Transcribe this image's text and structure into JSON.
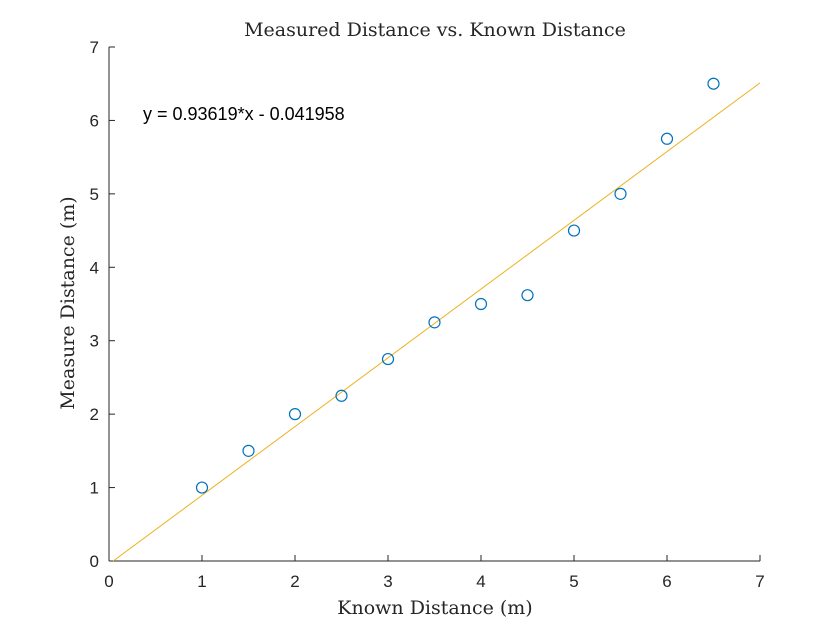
{
  "chart_data": {
    "type": "scatter",
    "title": "Measured Distance vs. Known Distance",
    "xlabel": "Known Distance (m)",
    "ylabel": "Measure Distance (m)",
    "xlim": [
      0,
      7
    ],
    "ylim": [
      0,
      7
    ],
    "xticks": [
      "0",
      "1",
      "2",
      "3",
      "4",
      "5",
      "6",
      "7"
    ],
    "yticks": [
      "0",
      "1",
      "2",
      "3",
      "4",
      "5",
      "6",
      "7"
    ],
    "grid": false,
    "series": [
      {
        "kind": "markers",
        "color": "#0072BD",
        "x": [
          1,
          1.5,
          2,
          2.5,
          3,
          3.5,
          4,
          4.5,
          5,
          5.5,
          6,
          6.5
        ],
        "y": [
          1,
          1.5,
          2,
          2.25,
          2.75,
          3.25,
          3.5,
          3.62,
          4.5,
          5,
          5.75,
          6.5
        ]
      },
      {
        "kind": "fit-line",
        "color": "#EDB120",
        "slope": 0.93619,
        "intercept": -0.041958
      }
    ],
    "annotation": "y = 0.93619*x - 0.041958"
  }
}
